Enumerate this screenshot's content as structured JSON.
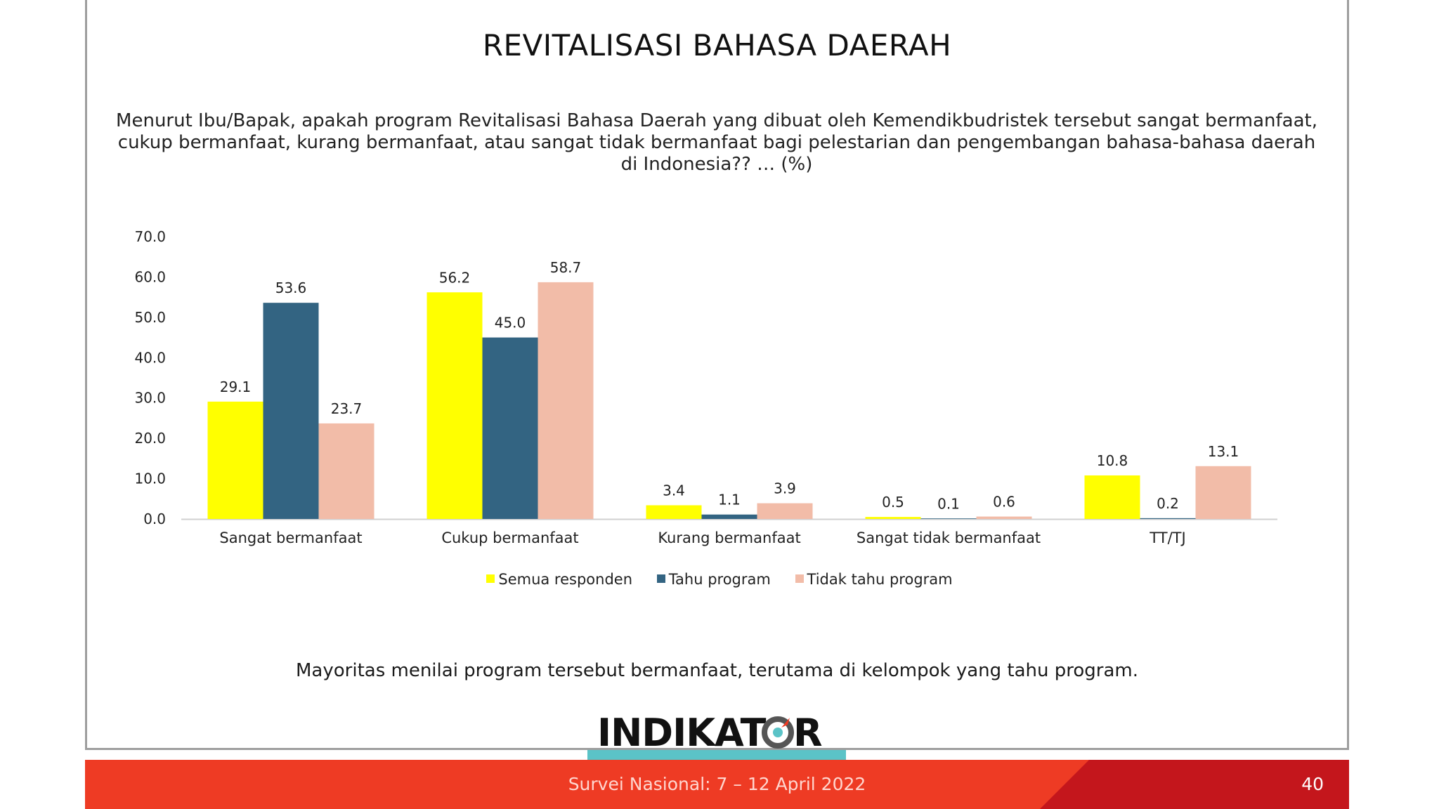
{
  "title": "REVITALISASI BAHASA DAERAH",
  "question_lines": [
    "Menurut Ibu/Bapak, apakah program Revitalisasi Bahasa Daerah yang dibuat oleh Kemendikbudristek tersebut sangat bermanfaat,",
    "cukup bermanfaat, kurang bermanfaat, atau sangat tidak bermanfaat bagi pelestarian dan pengembangan bahasa-bahasa daerah",
    "di Indonesia?? … (%)"
  ],
  "chart_data": {
    "type": "bar",
    "categories": [
      "Sangat bermanfaat",
      "Cukup bermanfaat",
      "Kurang bermanfaat",
      "Sangat tidak bermanfaat",
      "TT/TJ"
    ],
    "series": [
      {
        "name": "Semua responden",
        "color": "#ffff00",
        "values": [
          29.1,
          56.2,
          3.4,
          0.5,
          10.8
        ]
      },
      {
        "name": "Tahu program",
        "color": "#336482",
        "values": [
          53.6,
          45.0,
          1.1,
          0.1,
          0.2
        ]
      },
      {
        "name": "Tidak tahu program",
        "color": "#f2bca8",
        "values": [
          23.7,
          58.7,
          3.9,
          0.6,
          13.1
        ]
      }
    ],
    "yticks": [
      "0.0",
      "10.0",
      "20.0",
      "30.0",
      "40.0",
      "50.0",
      "60.0",
      "70.0"
    ],
    "ylim": [
      0,
      70
    ],
    "grid": false,
    "legend_position": "bottom"
  },
  "legend": {
    "items": [
      {
        "label": "Semua responden",
        "color": "#ffff00"
      },
      {
        "label": "Tahu program",
        "color": "#336482"
      },
      {
        "label": "Tidak tahu program",
        "color": "#f2bca8"
      }
    ]
  },
  "conclusion": "Mayoritas menilai program tersebut bermanfaat, terutama di kelompok yang tahu program.",
  "logo_text": "INDIKAT R",
  "footer": {
    "survey": "Survei Nasional: 7 – 12 April 2022",
    "page_number": "40"
  },
  "colors": {
    "footer_red": "#ee3b24",
    "footer_dark_red": "#c4161c",
    "teal": "#5bc3c7"
  }
}
